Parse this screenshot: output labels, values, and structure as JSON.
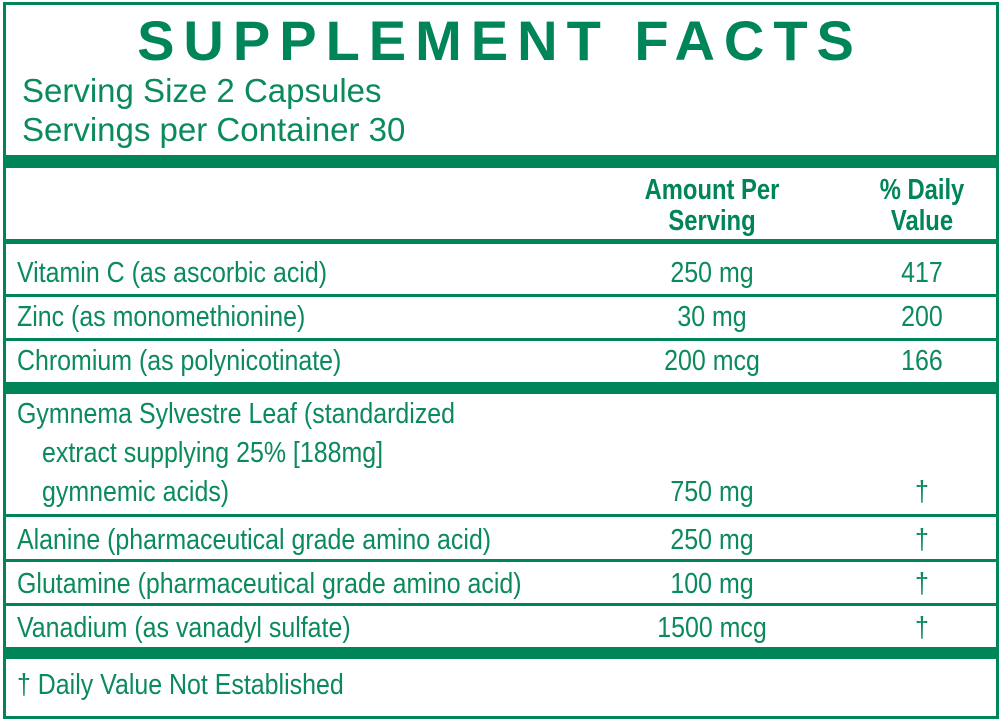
{
  "title": "SUPPLEMENT FACTS",
  "serving_size": "Serving Size 2 Capsules",
  "servings_per_container": "Servings per Container 30",
  "headers": {
    "amount_line1": "Amount Per",
    "amount_line2": "Serving",
    "dv_line1": "% Daily",
    "dv_line2": "Value"
  },
  "rows": [
    {
      "name": "Vitamin C (as ascorbic acid)",
      "amount": "250 mg",
      "dv": "417"
    },
    {
      "name": "Zinc (as monomethionine)",
      "amount": "30 mg",
      "dv": "200"
    },
    {
      "name": "Chromium (as polynicotinate)",
      "amount": "200 mcg",
      "dv": "166"
    },
    {
      "name_lines": [
        "Gymnema Sylvestre Leaf (standardized",
        "extract supplying 25% [188mg]",
        "gymnemic acids)"
      ],
      "amount": "750 mg",
      "dv": "†"
    },
    {
      "name": "Alanine (pharmaceutical grade amino acid)",
      "amount": "250 mg",
      "dv": "†"
    },
    {
      "name": "Glutamine (pharmaceutical grade amino acid)",
      "amount": "100 mg",
      "dv": "†"
    },
    {
      "name": "Vanadium (as vanadyl sulfate)",
      "amount": "1500 mcg",
      "dv": "†"
    }
  ],
  "footnote": "† Daily Value Not Established",
  "colors": {
    "brand_green": "#00845a",
    "text_green": "#0b8a5c"
  }
}
